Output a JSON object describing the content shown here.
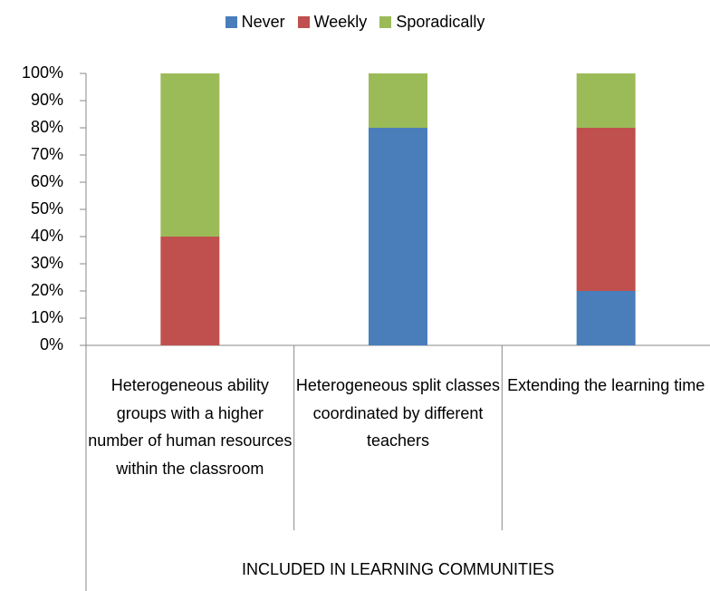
{
  "chart_data": {
    "type": "stacked_bar",
    "categories": [
      "Heterogeneous ability groups with a higher number of human resources within the classroom",
      "Heterogeneous split classes coordinated by different teachers",
      "Extending the learning time"
    ],
    "group_label": "INCLUDED IN LEARNING COMMUNITIES",
    "series": [
      {
        "name": "Never",
        "color": "#4a7ebb",
        "values": [
          0,
          80,
          20
        ]
      },
      {
        "name": "Weekly",
        "color": "#c0504d",
        "values": [
          40,
          0,
          60
        ]
      },
      {
        "name": "Sporadically",
        "color": "#9bbb59",
        "values": [
          60,
          20,
          20
        ]
      }
    ],
    "ylim": [
      0,
      100
    ],
    "yticks": [
      {
        "value": 0,
        "label": "0%"
      },
      {
        "value": 10,
        "label": "10%"
      },
      {
        "value": 20,
        "label": "20%"
      },
      {
        "value": 30,
        "label": "30%"
      },
      {
        "value": 40,
        "label": "40%"
      },
      {
        "value": 50,
        "label": "50%"
      },
      {
        "value": 60,
        "label": "60%"
      },
      {
        "value": 70,
        "label": "70%"
      },
      {
        "value": 80,
        "label": "80%"
      },
      {
        "value": 90,
        "label": "90%"
      },
      {
        "value": 100,
        "label": "100%"
      }
    ],
    "legend": "top"
  }
}
